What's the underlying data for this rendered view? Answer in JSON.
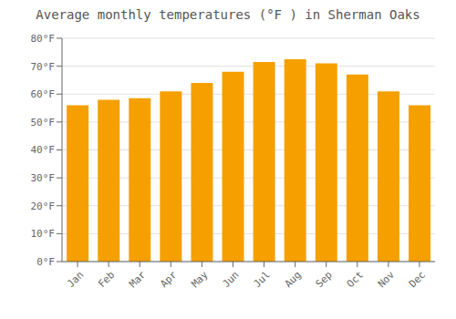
{
  "chart_data": {
    "type": "bar",
    "title": "Average monthly temperatures (°F ) in Sherman Oaks",
    "categories": [
      "Jan",
      "Feb",
      "Mar",
      "Apr",
      "May",
      "Jun",
      "Jul",
      "Aug",
      "Sep",
      "Oct",
      "Nov",
      "Dec"
    ],
    "values": [
      56,
      58,
      58.5,
      61,
      64,
      68,
      71.5,
      72.5,
      71,
      67,
      61,
      56
    ],
    "color": "#F5A000",
    "ylim": [
      0,
      80
    ],
    "yticks": [
      {
        "value": 0,
        "label": "0°F"
      },
      {
        "value": 10,
        "label": "10°F"
      },
      {
        "value": 20,
        "label": "20°F"
      },
      {
        "value": 30,
        "label": "30°F"
      },
      {
        "value": 40,
        "label": "40°F"
      },
      {
        "value": 50,
        "label": "50°F"
      },
      {
        "value": 60,
        "label": "60°F"
      },
      {
        "value": 70,
        "label": "70°F"
      },
      {
        "value": 80,
        "label": "80°F"
      }
    ],
    "grid": true
  }
}
